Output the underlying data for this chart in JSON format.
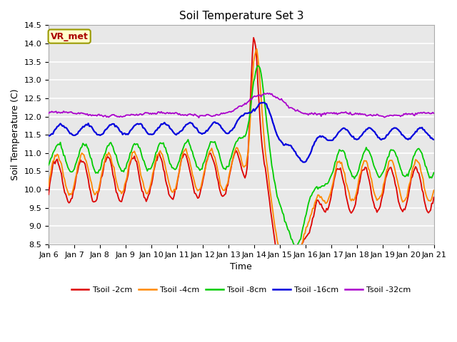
{
  "title": "Soil Temperature Set 3",
  "xlabel": "Time",
  "ylabel": "Soil Temperature (C)",
  "ylim": [
    8.5,
    14.5
  ],
  "bg_color": "#e8e8e8",
  "grid_color": "white",
  "annotation_text": "VR_met",
  "annotation_box_color": "#ffffcc",
  "annotation_box_edge": "#999900",
  "series_colors": {
    "Tsoil -2cm": "#dd0000",
    "Tsoil -4cm": "#ff8800",
    "Tsoil -8cm": "#00cc00",
    "Tsoil -16cm": "#0000dd",
    "Tsoil -32cm": "#aa00cc"
  },
  "series_linewidths": {
    "Tsoil -2cm": 1.3,
    "Tsoil -4cm": 1.3,
    "Tsoil -8cm": 1.3,
    "Tsoil -16cm": 1.6,
    "Tsoil -32cm": 1.3
  },
  "tick_fontsize": 8,
  "label_fontsize": 9,
  "title_fontsize": 11
}
